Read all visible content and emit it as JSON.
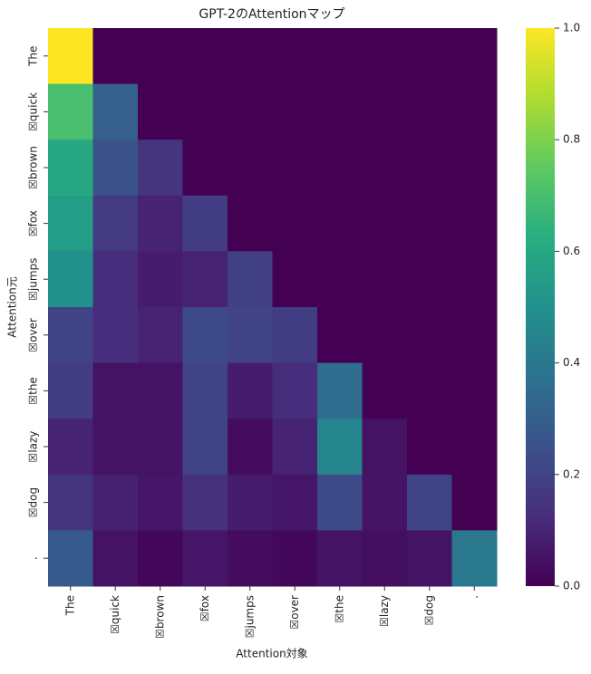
{
  "chart_data": {
    "type": "heatmap",
    "title": "GPT-2のAttentionマップ",
    "xlabel": "Attention対象",
    "ylabel": "Attention元",
    "x_categories": [
      "The",
      "☒quick",
      "☒brown",
      "☒fox",
      "☒jumps",
      "☒over",
      "☒the",
      "☒lazy",
      "☒dog",
      "."
    ],
    "y_categories": [
      "The",
      "☒quick",
      "☒brown",
      "☒fox",
      "☒jumps",
      "☒over",
      "☒the",
      "☒lazy",
      "☒dog",
      "."
    ],
    "values": [
      [
        1,
        0,
        0,
        0,
        0,
        0,
        0,
        0,
        0,
        0
      ],
      [
        0.7,
        0.3,
        0,
        0,
        0,
        0,
        0,
        0,
        0,
        0
      ],
      [
        0.6,
        0.25,
        0.15,
        0,
        0,
        0,
        0,
        0,
        0,
        0
      ],
      [
        0.55,
        0.17,
        0.1,
        0.18,
        0,
        0,
        0,
        0,
        0,
        0
      ],
      [
        0.5,
        0.13,
        0.08,
        0.1,
        0.19,
        0,
        0,
        0,
        0,
        0
      ],
      [
        0.2,
        0.13,
        0.1,
        0.22,
        0.2,
        0.18,
        0,
        0,
        0,
        0
      ],
      [
        0.18,
        0.05,
        0.05,
        0.2,
        0.08,
        0.13,
        0.35,
        0,
        0,
        0
      ],
      [
        0.1,
        0.05,
        0.05,
        0.2,
        0.03,
        0.1,
        0.45,
        0.05,
        0,
        0
      ],
      [
        0.15,
        0.09,
        0.06,
        0.14,
        0.08,
        0.06,
        0.22,
        0.05,
        0.2,
        0
      ],
      [
        0.28,
        0.05,
        0.02,
        0.06,
        0.03,
        0.02,
        0.05,
        0.04,
        0.05,
        0.4
      ]
    ],
    "colormap": "viridis",
    "clim": [
      0,
      1
    ],
    "cticks": [
      {
        "value": 0,
        "label": "0.0"
      },
      0.2,
      0.4,
      0.6,
      0.8,
      {
        "value": 1,
        "label": "1.0"
      }
    ]
  }
}
